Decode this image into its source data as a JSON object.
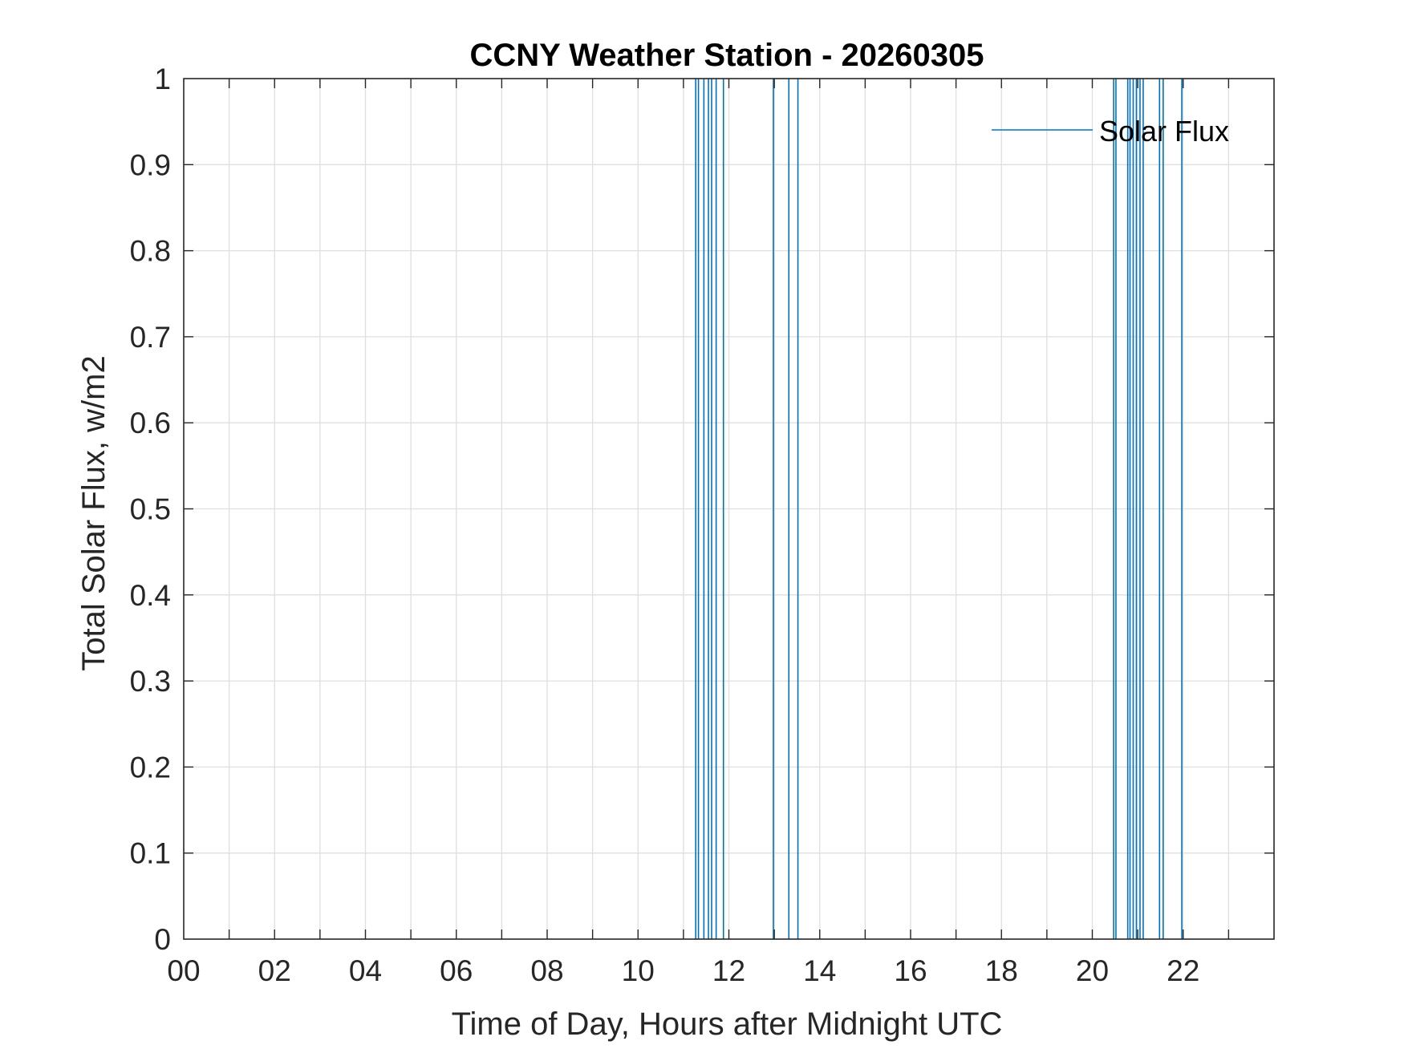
{
  "chart_data": {
    "type": "line",
    "title": "CCNY Weather Station - 20260305",
    "xlabel": "Time of Day, Hours after Midnight UTC",
    "ylabel": "Total Solar Flux, w/m2",
    "xlim": [
      0,
      24
    ],
    "ylim": [
      0,
      1
    ],
    "x_ticks": [
      0,
      2,
      4,
      6,
      8,
      10,
      12,
      14,
      16,
      18,
      20,
      22
    ],
    "x_tick_labels": [
      "00",
      "02",
      "04",
      "06",
      "08",
      "10",
      "12",
      "14",
      "16",
      "18",
      "20",
      "22"
    ],
    "y_ticks": [
      0,
      0.1,
      0.2,
      0.3,
      0.4,
      0.5,
      0.6,
      0.7,
      0.8,
      0.9,
      1
    ],
    "y_tick_labels": [
      "0",
      "0.1",
      "0.2",
      "0.3",
      "0.4",
      "0.5",
      "0.6",
      "0.7",
      "0.8",
      "0.9",
      "1"
    ],
    "grid": true,
    "legend_position": "top-right",
    "series": [
      {
        "name": "Solar Flux",
        "color": "#0072BD",
        "spikes_x": [
          11.27,
          11.33,
          11.45,
          11.55,
          11.62,
          11.72,
          11.88,
          12.98,
          13.32,
          13.52,
          20.47,
          20.52,
          20.78,
          20.83,
          20.9,
          20.97,
          21.05,
          21.12,
          21.48,
          21.56,
          21.97
        ],
        "spike_value": 1
      }
    ]
  }
}
